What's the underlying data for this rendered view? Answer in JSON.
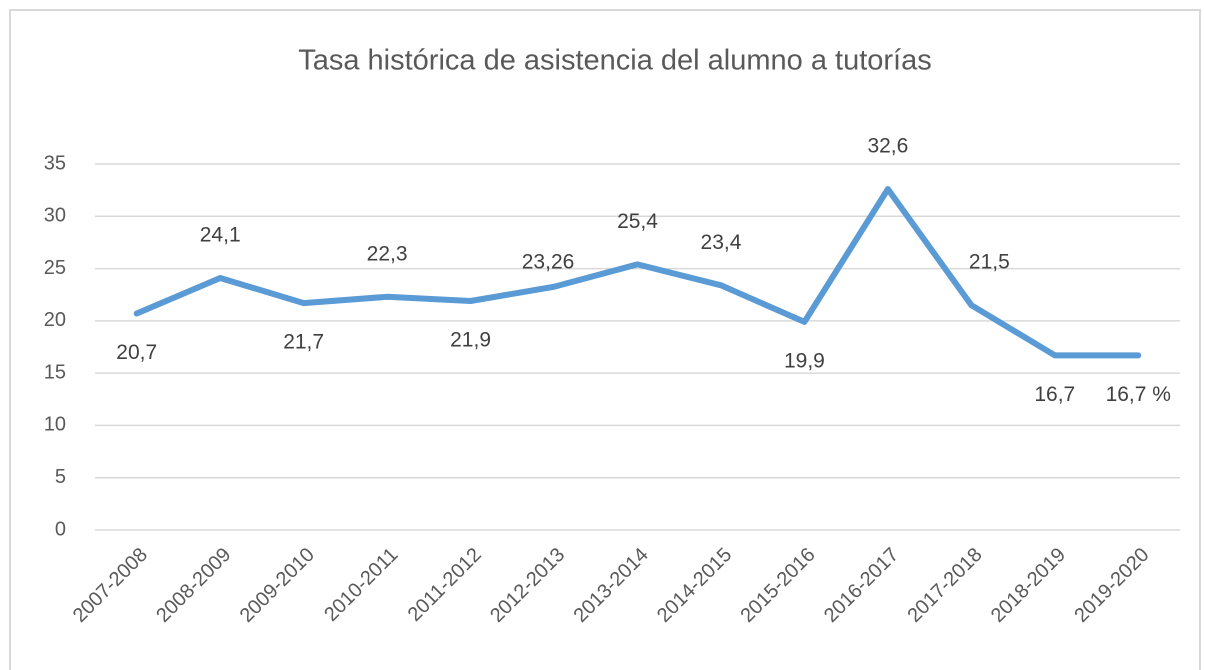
{
  "chart_data": {
    "type": "line",
    "title": "Tasa histórica de asistencia del alumno a tutorías",
    "categories": [
      "2007-2008",
      "2008-2009",
      "2009-2010",
      "2010-2011",
      "2011-2012",
      "2012-2013",
      "2013-2014",
      "2014-2015",
      "2015-2016",
      "2016-2017",
      "2017-2018",
      "2018-2019",
      "2019-2020"
    ],
    "series": [
      {
        "color": "#5b9bd5",
        "values": [
          20.7,
          24.1,
          21.7,
          22.3,
          21.9,
          23.26,
          25.4,
          23.4,
          19.9,
          32.6,
          21.5,
          16.7,
          16.7
        ],
        "value_labels": [
          "20,7",
          "24,1",
          "21,7",
          "22,3",
          "21,9",
          "23,26",
          "25,4",
          "23,4",
          "19,9",
          "32,6",
          "21,5",
          "16,7",
          "16,7 %"
        ]
      }
    ],
    "ylim": [
      0,
      35
    ],
    "yticks": [
      0,
      5,
      10,
      15,
      20,
      25,
      30,
      35
    ],
    "grid": true
  }
}
